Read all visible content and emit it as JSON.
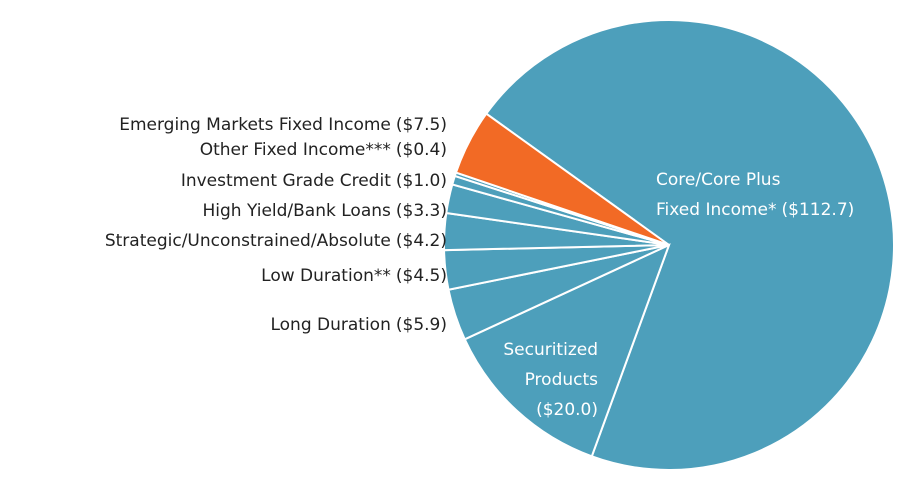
{
  "chart_data": {
    "type": "pie",
    "categories": [
      "Core/Core Plus Fixed Income*",
      "Securitized Products",
      "Long Duration",
      "Low Duration**",
      "Strategic/Unconstrained/Absolute",
      "High Yield/Bank Loans",
      "Investment Grade Credit",
      "Other Fixed Income***",
      "Emerging Markets Fixed Income"
    ],
    "values": [
      112.7,
      20.0,
      5.9,
      4.5,
      4.2,
      3.3,
      1.0,
      0.4,
      7.5
    ],
    "value_labels": [
      "($112.7)",
      "($20.0)",
      "($5.9)",
      "($4.5)",
      "($4.2)",
      "($3.3)",
      "($1.0)",
      "($0.4)",
      "($7.5)"
    ],
    "colors": [
      "#4d9fbb",
      "#4d9fbb",
      "#4d9fbb",
      "#4d9fbb",
      "#4d9fbb",
      "#4d9fbb",
      "#4d9fbb",
      "#4d9fbb",
      "#f26a25"
    ]
  }
}
